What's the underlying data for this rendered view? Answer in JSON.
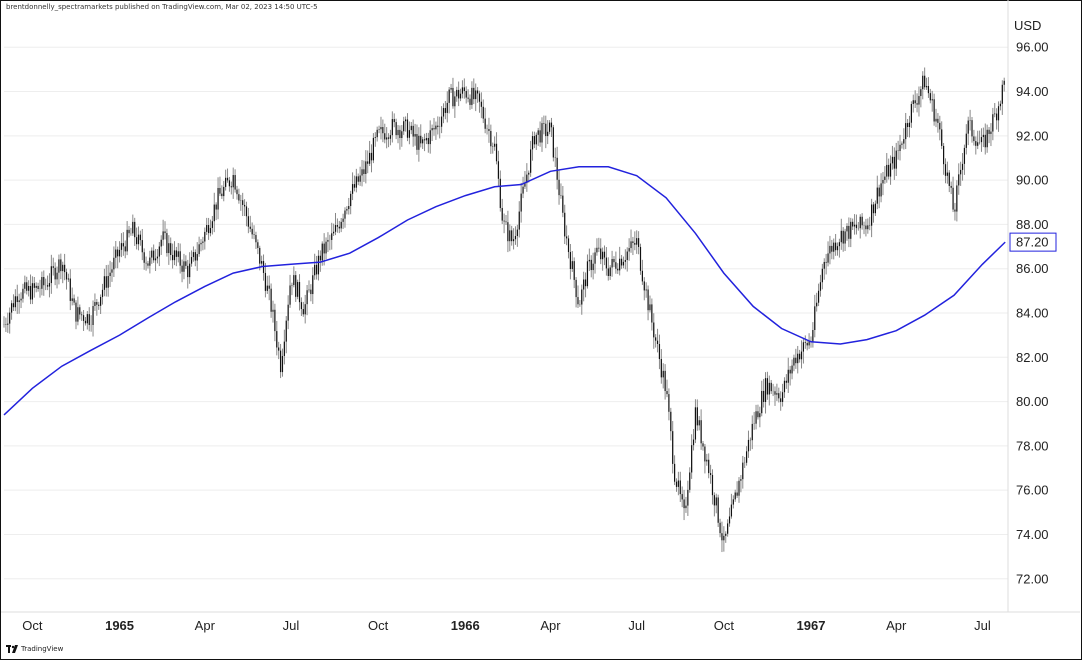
{
  "header": {
    "credit": "brentdonnelly_spectramarkets published on TradingView.com, Mar 02, 2023 14:50 UTC-5"
  },
  "footer": {
    "brand": "TradingView",
    "logo_icon": "tradingview-logo-icon"
  },
  "chart_data": {
    "type": "line",
    "ylabel": "USD",
    "ylim": [
      70.5,
      97.5
    ],
    "y_ticks": [
      "72.00",
      "74.00",
      "76.00",
      "78.00",
      "80.00",
      "82.00",
      "84.00",
      "86.00",
      "88.00",
      "90.00",
      "92.00",
      "94.00",
      "96.00"
    ],
    "x_ticks": [
      {
        "label": "Oct",
        "x": "1964-10-01",
        "bold": false
      },
      {
        "label": "1965",
        "x": "1965-01-01",
        "bold": true
      },
      {
        "label": "Apr",
        "x": "1965-04-01",
        "bold": false
      },
      {
        "label": "Jul",
        "x": "1965-07-01",
        "bold": false
      },
      {
        "label": "Oct",
        "x": "1965-10-01",
        "bold": false
      },
      {
        "label": "1966",
        "x": "1966-01-01",
        "bold": true
      },
      {
        "label": "Apr",
        "x": "1966-04-01",
        "bold": false
      },
      {
        "label": "Jul",
        "x": "1966-07-01",
        "bold": false
      },
      {
        "label": "Oct",
        "x": "1966-10-01",
        "bold": false
      },
      {
        "label": "1967",
        "x": "1967-01-01",
        "bold": true
      },
      {
        "label": "Apr",
        "x": "1967-04-01",
        "bold": false
      },
      {
        "label": "Jul",
        "x": "1967-07-01",
        "bold": false
      }
    ],
    "last_value_label": "87.20",
    "colors": {
      "price": "#111111",
      "price_wick": "#888888",
      "ma": "#2222dd",
      "grid": "#eeeeee"
    },
    "series": [
      {
        "style": "ohlc-bars",
        "x": [
          "1964-09-01",
          "1964-09-15",
          "1964-10-01",
          "1964-10-15",
          "1964-11-01",
          "1964-11-15",
          "1964-12-01",
          "1964-12-15",
          "1965-01-01",
          "1965-01-15",
          "1965-02-01",
          "1965-02-15",
          "1965-03-01",
          "1965-03-15",
          "1965-04-01",
          "1965-04-15",
          "1965-05-01",
          "1965-05-15",
          "1965-06-01",
          "1965-06-10",
          "1965-06-20",
          "1965-07-01",
          "1965-07-15",
          "1965-08-01",
          "1965-08-15",
          "1965-09-01",
          "1965-09-15",
          "1965-10-01",
          "1965-10-15",
          "1965-11-01",
          "1965-11-15",
          "1965-12-01",
          "1965-12-15",
          "1966-01-01",
          "1966-01-15",
          "1966-02-01",
          "1966-02-10",
          "1966-02-20",
          "1966-03-01",
          "1966-03-15",
          "1966-04-01",
          "1966-04-15",
          "1966-05-01",
          "1966-05-10",
          "1966-05-20",
          "1966-06-01",
          "1966-06-15",
          "1966-07-01",
          "1966-07-15",
          "1966-08-01",
          "1966-08-10",
          "1966-08-20",
          "1966-09-01",
          "1966-09-15",
          "1966-10-01",
          "1966-10-15",
          "1966-11-01",
          "1966-11-15",
          "1966-12-01",
          "1966-12-15",
          "1967-01-01",
          "1967-01-15",
          "1967-02-01",
          "1967-02-15",
          "1967-03-01",
          "1967-03-15",
          "1967-04-01",
          "1967-04-15",
          "1967-05-01",
          "1967-05-15",
          "1967-06-01",
          "1967-06-15",
          "1967-07-01",
          "1967-07-15",
          "1967-07-25"
        ],
        "y": [
          83.5,
          84.9,
          85.0,
          85.3,
          86.4,
          84.0,
          83.8,
          85.2,
          86.8,
          87.7,
          86.2,
          87.4,
          86.5,
          85.9,
          87.6,
          89.2,
          90.2,
          88.4,
          86.0,
          84.3,
          81.7,
          85.7,
          84.2,
          86.6,
          87.5,
          89.3,
          90.3,
          92.0,
          92.4,
          92.3,
          91.5,
          92.4,
          93.7,
          94.0,
          93.5,
          91.5,
          88.0,
          87.2,
          89.0,
          92.0,
          92.3,
          88.0,
          84.4,
          85.9,
          86.8,
          86.0,
          86.5,
          87.2,
          84.0,
          80.5,
          76.8,
          74.8,
          79.5,
          77.0,
          73.5,
          76.0,
          79.0,
          80.8,
          80.3,
          82.0,
          82.8,
          86.5,
          87.5,
          87.8,
          88.0,
          89.8,
          91.0,
          93.0,
          94.5,
          92.5,
          88.5,
          92.5,
          91.5,
          93.0,
          94.5
        ]
      },
      {
        "style": "moving-average",
        "x": [
          "1964-09-01",
          "1964-10-01",
          "1964-11-01",
          "1964-12-01",
          "1965-01-01",
          "1965-02-01",
          "1965-03-01",
          "1965-04-01",
          "1965-05-01",
          "1965-06-01",
          "1965-07-01",
          "1965-08-01",
          "1965-09-01",
          "1965-10-01",
          "1965-11-01",
          "1965-12-01",
          "1966-01-01",
          "1966-02-01",
          "1966-03-01",
          "1966-04-01",
          "1966-05-01",
          "1966-06-01",
          "1966-07-01",
          "1966-08-01",
          "1966-09-01",
          "1966-10-01",
          "1966-11-01",
          "1966-12-01",
          "1967-01-01",
          "1967-02-01",
          "1967-03-01",
          "1967-04-01",
          "1967-05-01",
          "1967-06-01",
          "1967-07-01",
          "1967-07-25"
        ],
        "y": [
          79.4,
          80.6,
          81.6,
          82.3,
          83.0,
          83.8,
          84.5,
          85.2,
          85.8,
          86.1,
          86.2,
          86.3,
          86.7,
          87.4,
          88.2,
          88.8,
          89.3,
          89.7,
          89.8,
          90.4,
          90.6,
          90.6,
          90.2,
          89.2,
          87.6,
          85.8,
          84.3,
          83.3,
          82.7,
          82.6,
          82.8,
          83.2,
          83.9,
          84.8,
          86.2,
          87.2
        ]
      }
    ]
  }
}
